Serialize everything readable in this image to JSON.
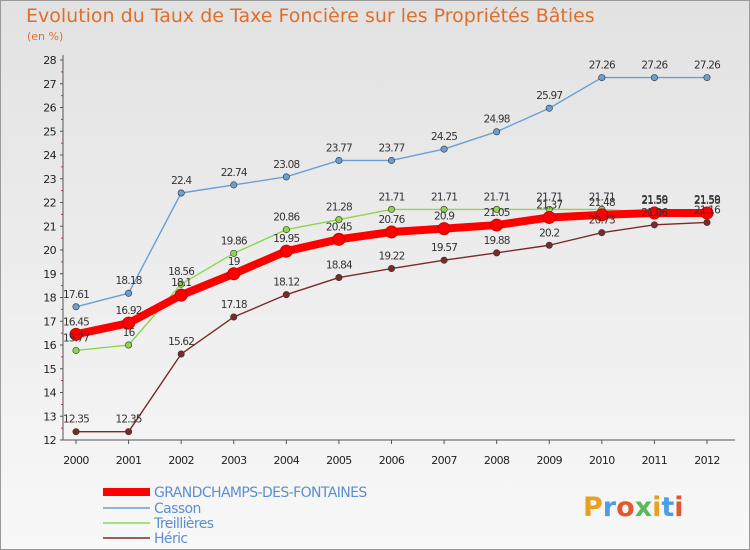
{
  "chart_data": {
    "type": "line",
    "title": "Evolution du Taux de Taxe Foncière sur les Propriétés Bâties",
    "subtitle": "(en %)",
    "x": [
      "2000",
      "2001",
      "2002",
      "2003",
      "2004",
      "2005",
      "2006",
      "2007",
      "2008",
      "2009",
      "2010",
      "2011",
      "2012"
    ],
    "ylim": [
      12,
      28
    ],
    "yticks": [
      "12",
      "13",
      "14",
      "15",
      "16",
      "17",
      "18",
      "19",
      "20",
      "21",
      "22",
      "23",
      "24",
      "25",
      "26",
      "27",
      "28"
    ],
    "grid": false,
    "legend_position": "bottom-left",
    "series": [
      {
        "name": "GRANDCHAMPS-DES-FONTAINES",
        "color": "#ff0000",
        "values": [
          16.45,
          16.92,
          18.1,
          19,
          19.95,
          20.45,
          20.76,
          20.9,
          21.05,
          21.37,
          21.48,
          21.56,
          21.56
        ],
        "labels": [
          "16.45",
          "16.92",
          "18.1",
          "19",
          "19.95",
          "20.45",
          "20.76",
          "20.9",
          "21.05",
          "21.37",
          "21.48",
          "21.56",
          "21.56"
        ]
      },
      {
        "name": "Casson",
        "color": "#6a9fd4",
        "values": [
          17.61,
          18.18,
          22.4,
          22.74,
          23.08,
          23.77,
          23.77,
          24.25,
          24.98,
          25.97,
          27.26,
          27.26,
          27.26
        ],
        "labels": [
          "17.61",
          "18.18",
          "22.4",
          "22.74",
          "23.08",
          "23.77",
          "23.77",
          "24.25",
          "24.98",
          "25.97",
          "27.26",
          "27.26",
          "27.26"
        ]
      },
      {
        "name": "Treillières",
        "color": "#8ed64a",
        "values": [
          15.77,
          16,
          18.56,
          19.86,
          20.86,
          21.28,
          21.71,
          21.71,
          21.71,
          21.71,
          21.71,
          21.59,
          21.59
        ],
        "labels": [
          "15.77",
          "16",
          "18.56",
          "19.86",
          "20.86",
          "21.28",
          "21.71",
          "21.71",
          "21.71",
          "21.71",
          "21.71",
          "21.59",
          "21.59"
        ]
      },
      {
        "name": "Héric",
        "color": "#7a2a2a",
        "values": [
          12.35,
          12.35,
          15.62,
          17.18,
          18.12,
          18.84,
          19.22,
          19.57,
          19.88,
          20.2,
          20.73,
          21.06,
          21.16
        ],
        "labels": [
          "12.35",
          "12.35",
          "15.62",
          "17.18",
          "18.12",
          "18.84",
          "19.22",
          "19.57",
          "19.88",
          "20.2",
          "20.73",
          "21.06",
          "21.16"
        ]
      }
    ],
    "logo": "Proxiti"
  }
}
